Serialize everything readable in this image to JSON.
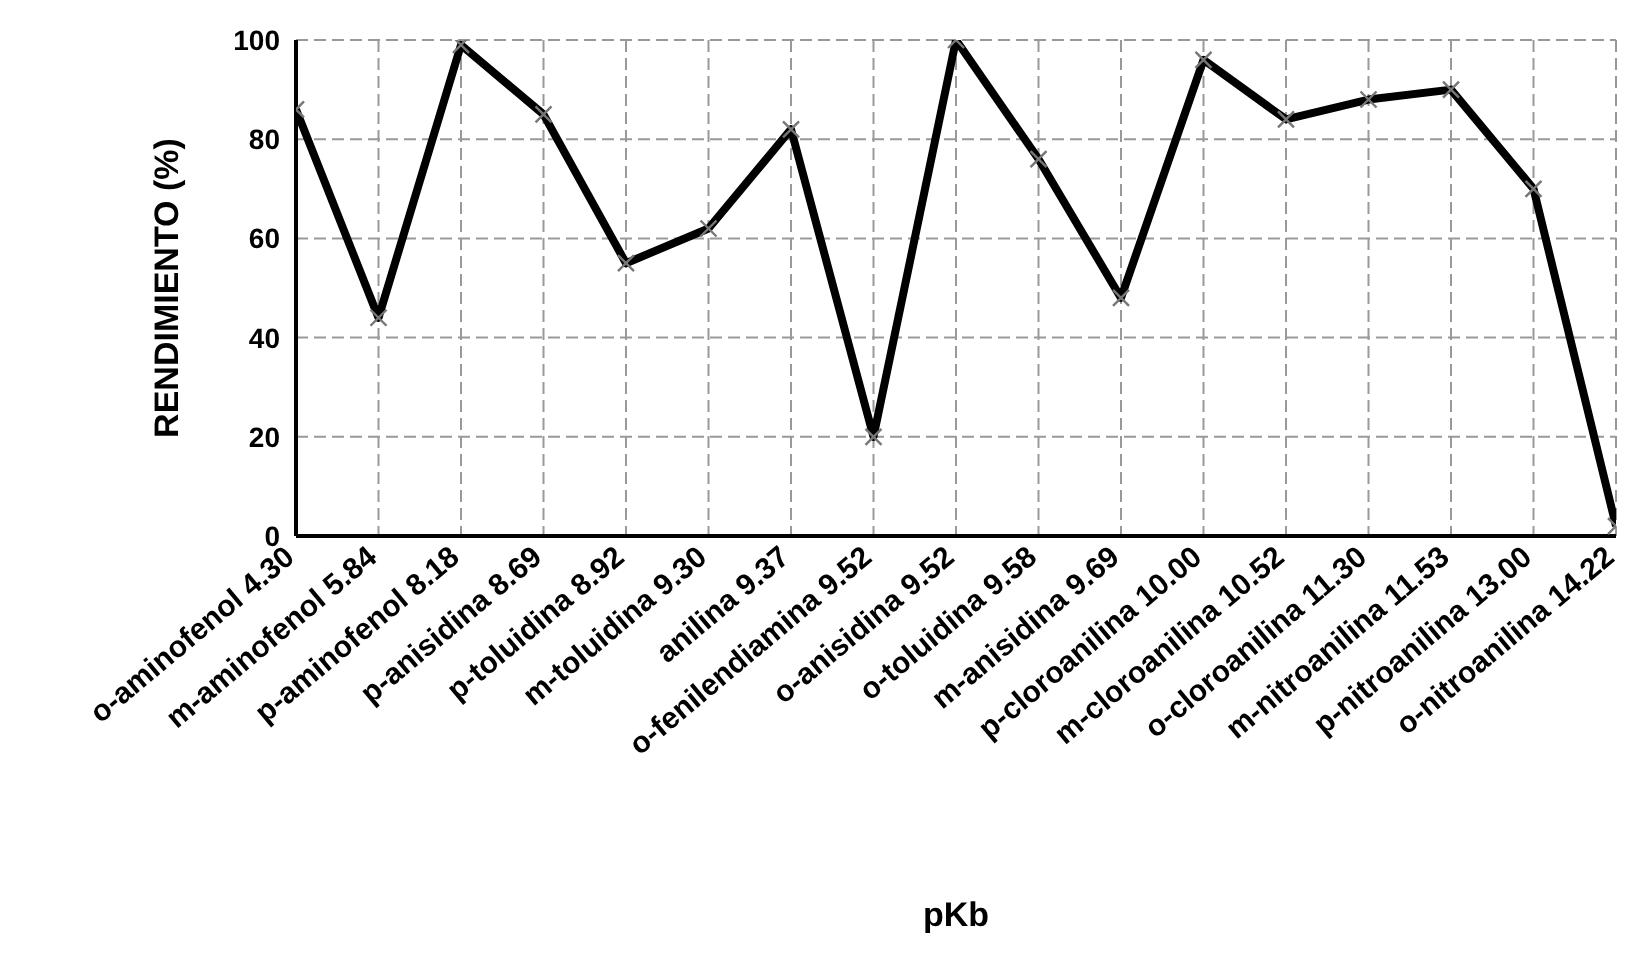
{
  "chart_data": {
    "type": "line",
    "xlabel": "pKb",
    "ylabel": "RENDIMIENTO (%)",
    "categories": [
      "o-aminofenol 4.30",
      "m-aminofenol 5.84",
      "p-aminofenol 8.18",
      "p-anisidina 8.69",
      "p-toluidina 8.92",
      "m-toluidina 9.30",
      "anilina 9.37",
      "o-fenilendiamina 9.52",
      "o-anisidina 9.52",
      "o-toluidina 9.58",
      "m-anisidina 9.69",
      "p-cloroanilina 10.00",
      "m-cloroanilina 10.52",
      "o-cloroanilina 11.30",
      "m-nitroanilina 11.53",
      "p-nitroanilina 13.00",
      "o-nitroanilina 14.22"
    ],
    "series": [
      {
        "color": "#000000",
        "values": [
          86,
          44,
          99,
          85,
          55,
          62,
          82,
          20,
          100,
          76,
          48,
          96,
          84,
          88,
          90,
          70,
          2
        ]
      }
    ],
    "ylim": [
      0,
      100
    ],
    "yticks": [
      0,
      20,
      40,
      60,
      80,
      100
    ],
    "grid": true,
    "marker": "cross",
    "line_style": "solid",
    "legend": false
  }
}
